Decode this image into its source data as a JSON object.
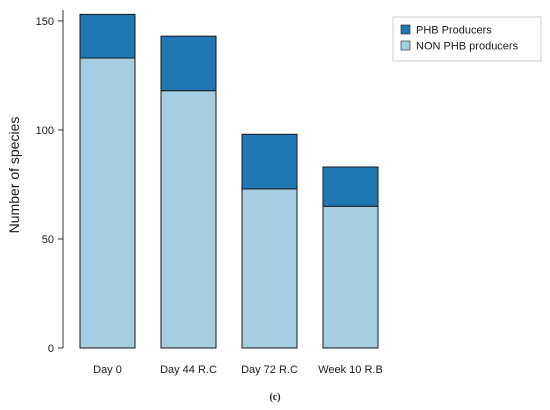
{
  "chart_data": {
    "type": "bar",
    "stacked": true,
    "categories": [
      "Day 0",
      "Day 44 R.C",
      "Day 72 R.C",
      "Week 10 R.B"
    ],
    "series": [
      {
        "name": "NON PHB producers",
        "values": [
          133,
          118,
          73,
          65
        ],
        "color": "#a6cee3"
      },
      {
        "name": "PHB Producers",
        "values": [
          20,
          25,
          25,
          18
        ],
        "color": "#1f78b4"
      }
    ],
    "ylabel": "Number of species",
    "xlabel": "",
    "ylim": [
      0,
      155
    ],
    "yticks": [
      0,
      50,
      100,
      150
    ],
    "grid": false,
    "legend_position": "top-right",
    "legend_order": [
      "PHB Producers",
      "NON PHB producers"
    ],
    "panel_label": "(c)"
  }
}
